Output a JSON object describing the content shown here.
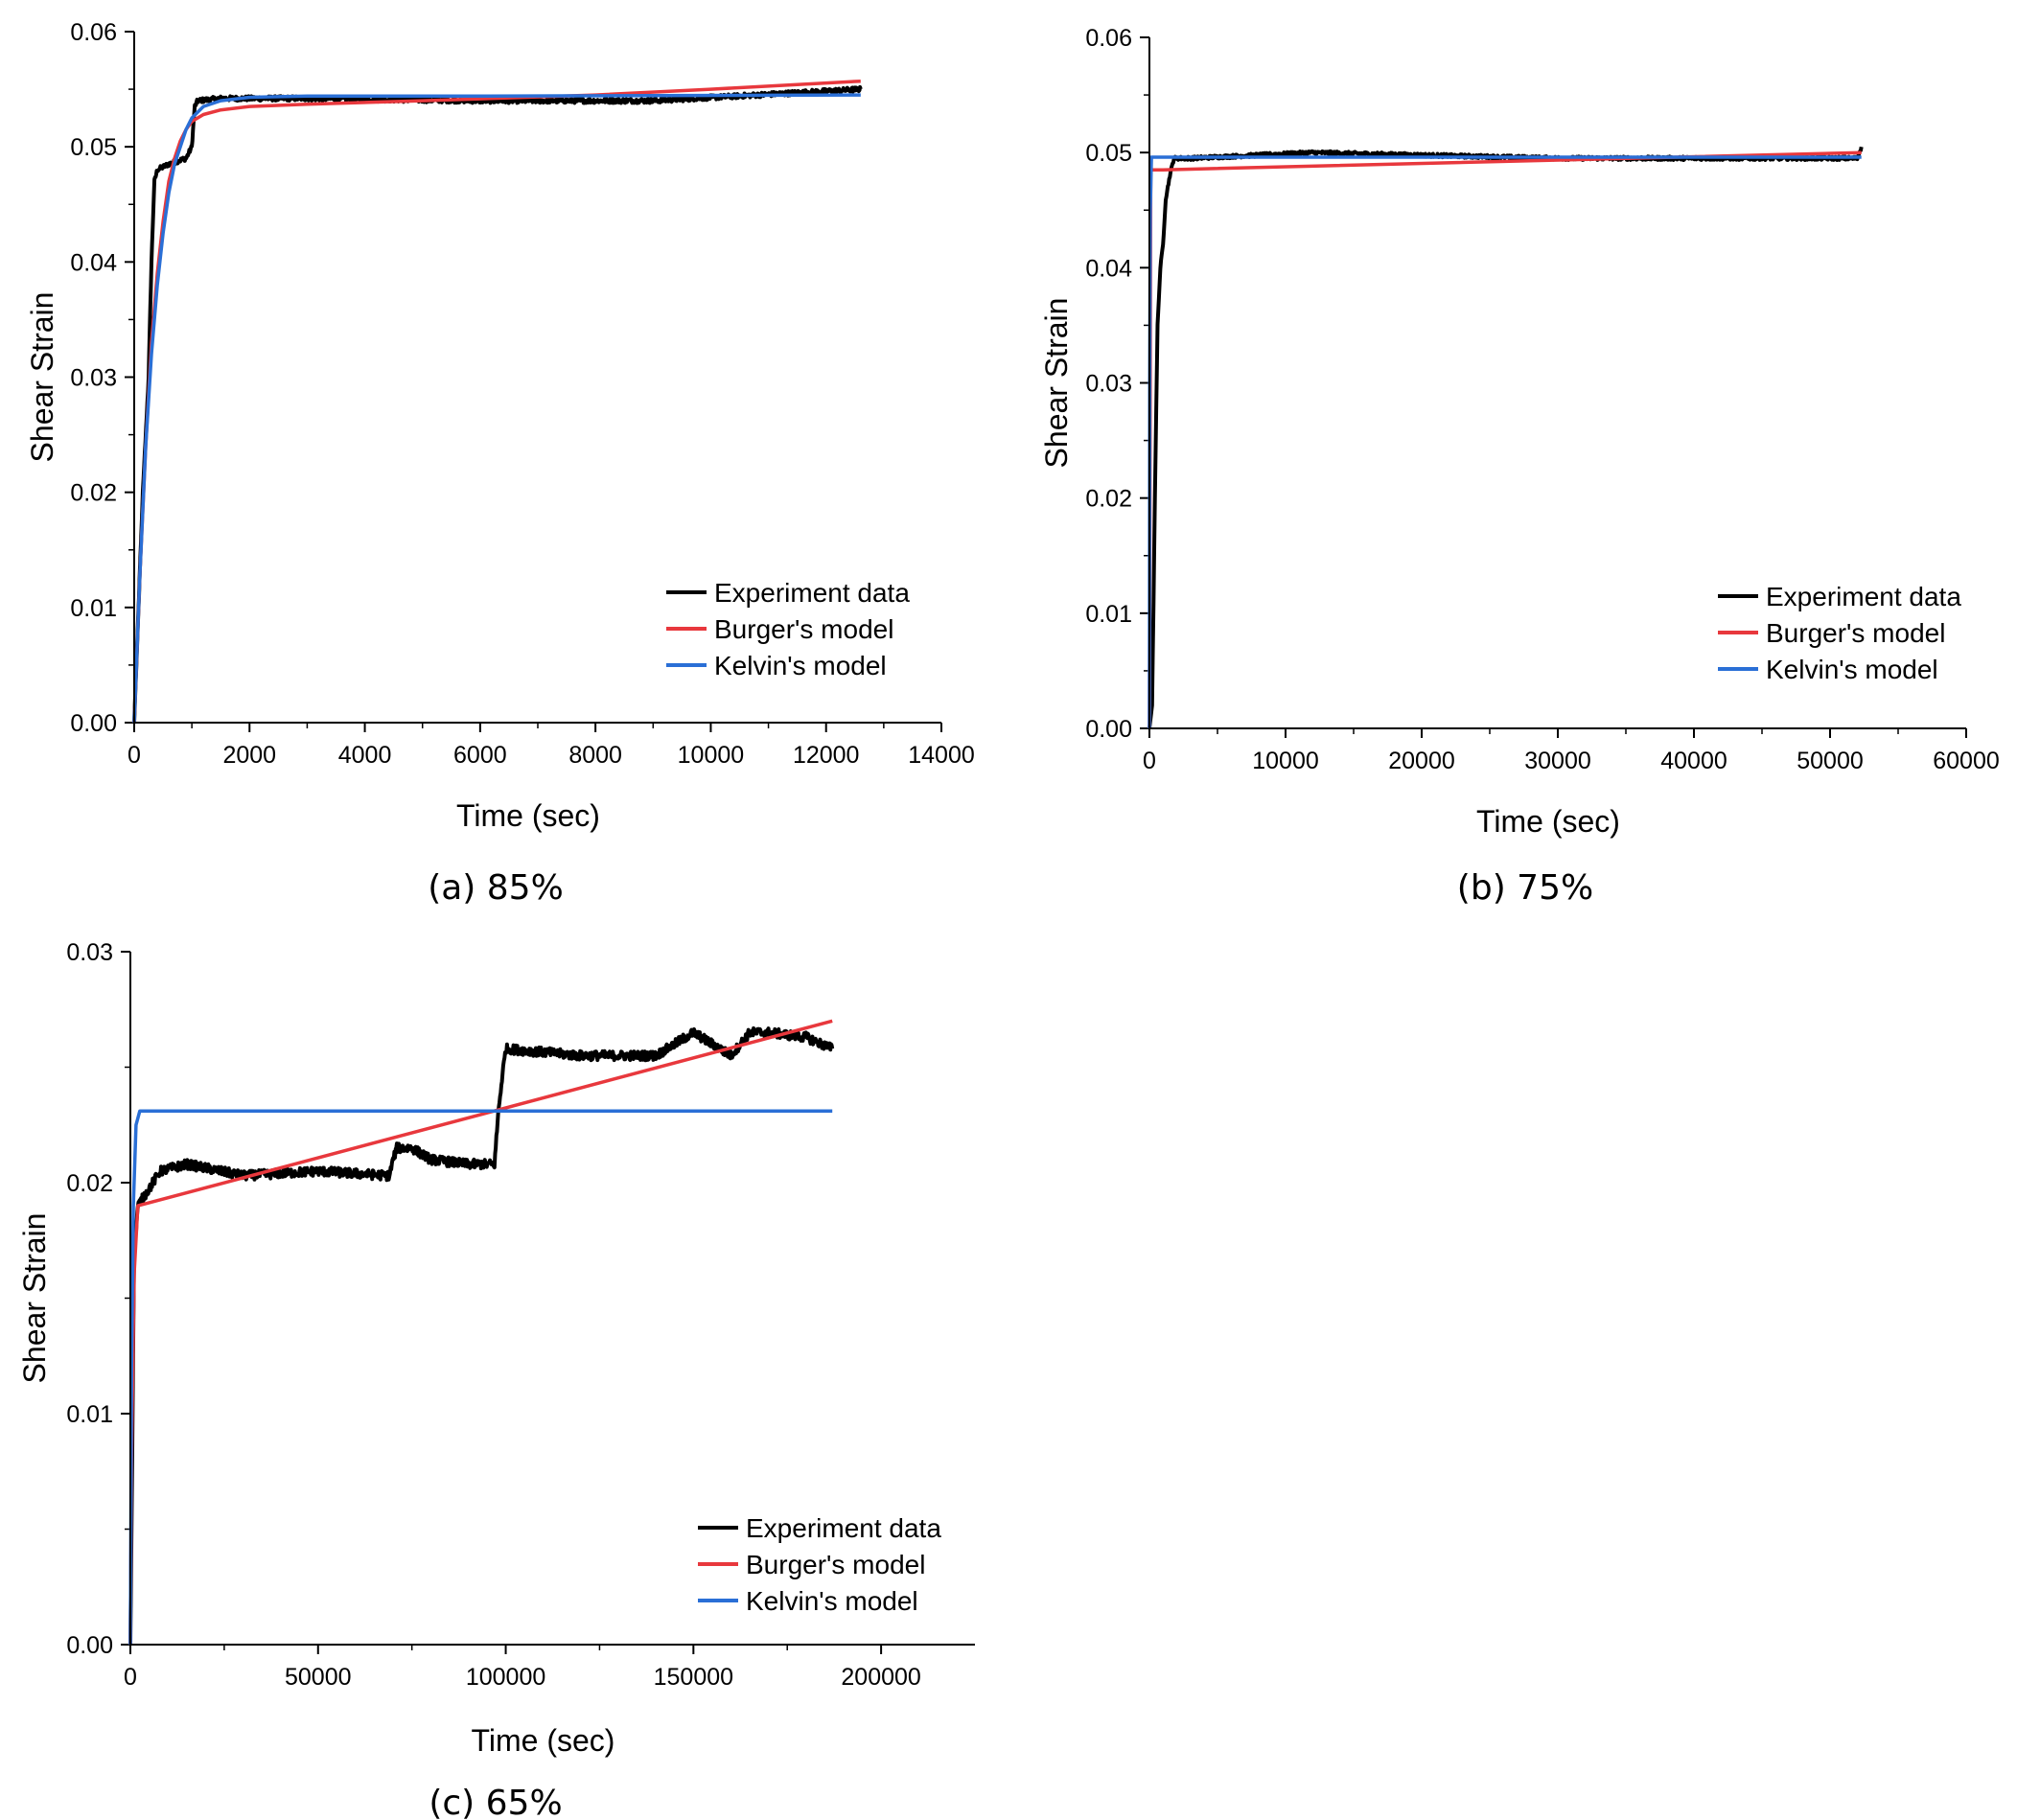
{
  "chart_data": [
    {
      "type": "line",
      "caption": "(a) 85%",
      "xlabel": "Time (sec)",
      "ylabel": "Shear Strain",
      "xlim": [
        0,
        14000
      ],
      "ylim": [
        0,
        0.06
      ],
      "xticks": [
        "0",
        "2000",
        "4000",
        "6000",
        "8000",
        "10000",
        "12000",
        "14000"
      ],
      "yticks": [
        "0.00",
        "0.01",
        "0.02",
        "0.03",
        "0.04",
        "0.05",
        "0.06"
      ],
      "xtick_values": [
        0,
        2000,
        4000,
        6000,
        8000,
        10000,
        12000,
        14000
      ],
      "ytick_values": [
        0,
        0.01,
        0.02,
        0.03,
        0.04,
        0.05,
        0.06
      ],
      "legend_position": "bottom-right",
      "series": [
        {
          "name": "Experiment data",
          "color": "#000000",
          "noise": 0.0004,
          "x": [
            0,
            60,
            150,
            250,
            300,
            350,
            400,
            600,
            900,
            1000,
            1050,
            1100,
            1500,
            3000,
            6000,
            9000,
            12600
          ],
          "y": [
            0,
            0.008,
            0.02,
            0.03,
            0.04,
            0.047,
            0.048,
            0.0485,
            0.049,
            0.05,
            0.0535,
            0.054,
            0.0542,
            0.0542,
            0.054,
            0.054,
            0.055
          ]
        },
        {
          "name": "Burger's model",
          "color": "#e8383d",
          "noise": 0,
          "x": [
            0,
            100,
            200,
            300,
            400,
            500,
            600,
            700,
            800,
            900,
            1000,
            1200,
            1500,
            2000,
            3000,
            5000,
            8000,
            10000,
            12600
          ],
          "y": [
            0,
            0.013,
            0.024,
            0.033,
            0.039,
            0.0435,
            0.047,
            0.049,
            0.0505,
            0.0515,
            0.0522,
            0.0528,
            0.0532,
            0.0535,
            0.0537,
            0.054,
            0.0545,
            0.055,
            0.0557
          ]
        },
        {
          "name": "Kelvin's model",
          "color": "#2a6fd6",
          "noise": 0,
          "x": [
            0,
            100,
            200,
            300,
            400,
            500,
            600,
            700,
            800,
            900,
            1000,
            1200,
            1500,
            2000,
            3000,
            6000,
            12600
          ],
          "y": [
            0,
            0.013,
            0.024,
            0.032,
            0.038,
            0.0425,
            0.046,
            0.0485,
            0.05,
            0.0515,
            0.0525,
            0.0535,
            0.054,
            0.0543,
            0.0544,
            0.0544,
            0.0545
          ]
        }
      ]
    },
    {
      "type": "line",
      "caption": "(b) 75%",
      "xlabel": "Time (sec)",
      "ylabel": "Shear Strain",
      "xlim": [
        0,
        60000
      ],
      "ylim": [
        0,
        0.06
      ],
      "xticks": [
        "0",
        "10000",
        "20000",
        "30000",
        "40000",
        "50000",
        "60000"
      ],
      "yticks": [
        "0.00",
        "0.01",
        "0.02",
        "0.03",
        "0.04",
        "0.05",
        "0.06"
      ],
      "xtick_values": [
        0,
        10000,
        20000,
        30000,
        40000,
        50000,
        60000
      ],
      "ytick_values": [
        0,
        0.01,
        0.02,
        0.03,
        0.04,
        0.05,
        0.06
      ],
      "legend_position": "bottom-right",
      "series": [
        {
          "name": "Experiment data",
          "color": "#000000",
          "noise": 0.0003,
          "x": [
            0,
            200,
            400,
            600,
            800,
            1000,
            1200,
            1500,
            1800,
            3000,
            12000,
            30000,
            52000,
            52300
          ],
          "y": [
            0,
            0.002,
            0.02,
            0.035,
            0.04,
            0.042,
            0.046,
            0.048,
            0.0495,
            0.0495,
            0.05,
            0.0495,
            0.0495,
            0.0505
          ]
        },
        {
          "name": "Burger's model",
          "color": "#e8383d",
          "noise": 0,
          "x": [
            0,
            100,
            1000,
            52300
          ],
          "y": [
            0,
            0.0485,
            0.0485,
            0.05
          ]
        },
        {
          "name": "Kelvin's model",
          "color": "#2a6fd6",
          "noise": 0,
          "x": [
            0,
            20,
            60,
            150,
            52300
          ],
          "y": [
            0,
            0.03,
            0.045,
            0.0496,
            0.0496
          ]
        }
      ]
    },
    {
      "type": "line",
      "caption": "(c) 65%",
      "xlabel": "Time (sec)",
      "ylabel": "Shear Strain",
      "xlim": [
        0,
        225000
      ],
      "ylim": [
        0,
        0.03
      ],
      "xticks": [
        "0",
        "50000",
        "100000",
        "150000",
        "200000"
      ],
      "yticks": [
        "0.00",
        "0.01",
        "0.02",
        "0.03"
      ],
      "xtick_values": [
        0,
        50000,
        100000,
        150000,
        200000
      ],
      "ytick_values": [
        0,
        0.01,
        0.02,
        0.03
      ],
      "legend_position": "bottom-right",
      "series": [
        {
          "name": "Experiment data",
          "color": "#000000",
          "noise": 0.0004,
          "x": [
            0,
            300,
            1000,
            2000,
            8000,
            15000,
            30000,
            50000,
            69000,
            70000,
            71000,
            75000,
            80000,
            90000,
            97000,
            98000,
            99000,
            100000,
            120000,
            140000,
            150000,
            160000,
            165000,
            170000,
            180000,
            187000
          ],
          "y": [
            0,
            0.005,
            0.017,
            0.019,
            0.0205,
            0.0208,
            0.0203,
            0.0205,
            0.0203,
            0.021,
            0.0215,
            0.0215,
            0.021,
            0.0208,
            0.0208,
            0.023,
            0.0245,
            0.0258,
            0.0255,
            0.0255,
            0.0265,
            0.0255,
            0.0265,
            0.0265,
            0.0263,
            0.0258
          ]
        },
        {
          "name": "Burger's model",
          "color": "#e8383d",
          "noise": 0,
          "x": [
            0,
            300,
            1000,
            2000,
            187000
          ],
          "y": [
            0,
            0.008,
            0.016,
            0.019,
            0.027
          ]
        },
        {
          "name": "Kelvin's model",
          "color": "#2a6fd6",
          "noise": 0,
          "x": [
            0,
            300,
            800,
            1500,
            2500,
            187000
          ],
          "y": [
            0,
            0.012,
            0.019,
            0.0225,
            0.0231,
            0.0231
          ]
        }
      ]
    }
  ]
}
